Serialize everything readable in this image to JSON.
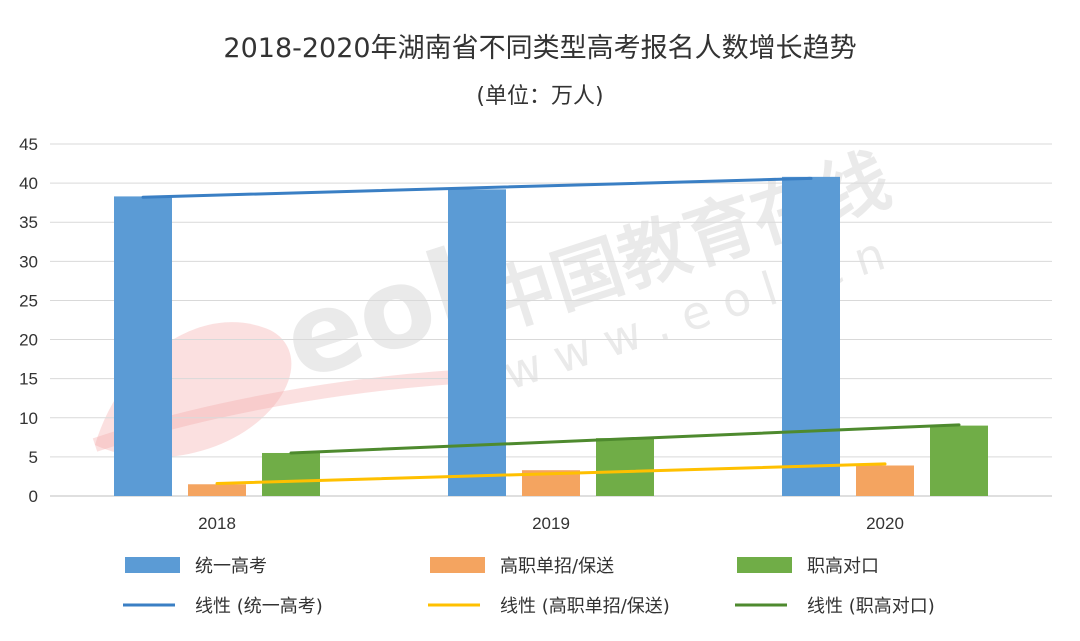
{
  "chart_data": {
    "type": "bar",
    "title": "2018-2020年湖南省不同类型高考报名人数增长趋势",
    "subtitle": "(单位：万人)",
    "categories": [
      "2018",
      "2019",
      "2020"
    ],
    "ylim": [
      0,
      45
    ],
    "yticks": [
      0,
      5,
      10,
      15,
      20,
      25,
      30,
      35,
      40,
      45
    ],
    "grid": true,
    "legend_position": "bottom",
    "series": [
      {
        "name": "统一高考",
        "values": [
          38.3,
          39.2,
          40.8
        ],
        "color": "#5b9bd5"
      },
      {
        "name": "高职单招/保送",
        "values": [
          1.5,
          3.3,
          3.9
        ],
        "color": "#f4a460"
      },
      {
        "name": "职高对口",
        "values": [
          5.5,
          7.4,
          9.0
        ],
        "color": "#70ad47"
      }
    ],
    "trendlines": [
      {
        "name": "线性 (统一高考)",
        "series": 0,
        "start": 38.2,
        "end": 40.6,
        "color": "#3a7fc4"
      },
      {
        "name": "线性 (高职单招/保送)",
        "series": 1,
        "start": 1.6,
        "end": 4.1,
        "color": "#ffc000"
      },
      {
        "name": "线性 (职高对口)",
        "series": 2,
        "start": 5.5,
        "end": 9.1,
        "color": "#4e8a2e"
      }
    ]
  },
  "watermark": {
    "logo_text": "eol",
    "cn_text": "中国教育在线",
    "url_text": "w w w . e o l . c n"
  }
}
